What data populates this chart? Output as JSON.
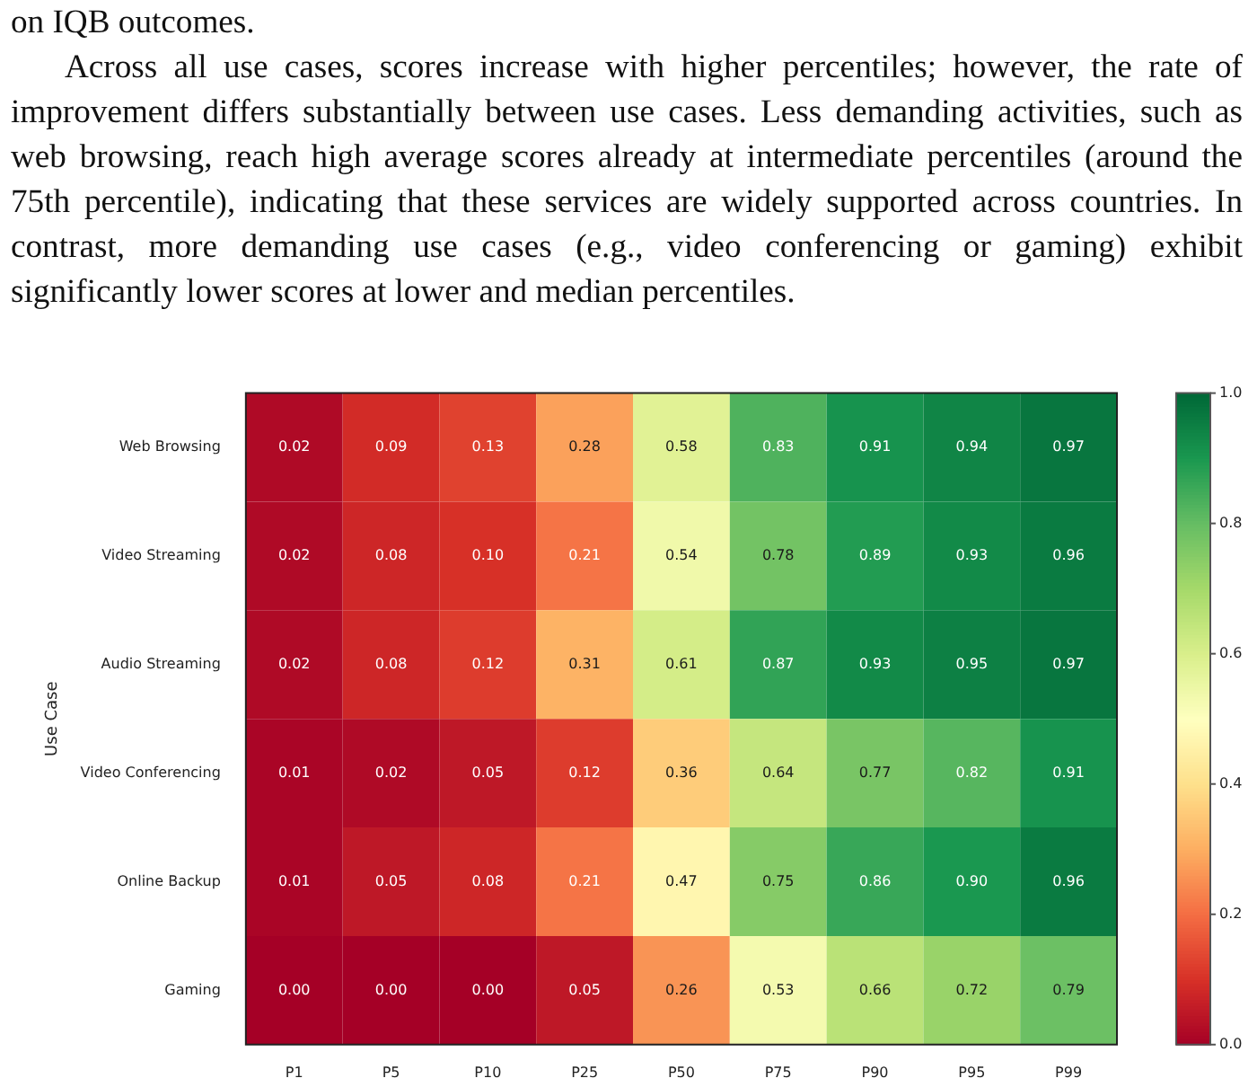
{
  "chart_data": {
    "type": "heatmap",
    "ylabel": "Use Case",
    "annotations": [
      "on IQB outcomes.",
      "Across all use cases, scores increase with higher percentiles; however, the rate of improvement differs substantially between use cases. Less demanding activities, such as web browsing, reach high average scores already at intermediate percentiles (around the 75th percentile), indicating that these services are widely supported across countries. In contrast, more demanding use cases (e.g., video conferencing or gaming) exhibit significantly lower scores at lower and median percentiles."
    ],
    "categories": [
      "P1",
      "P5",
      "P10",
      "P25",
      "P50",
      "P75",
      "P90",
      "P95",
      "P99"
    ],
    "y_categories": [
      "Web Browsing",
      "Video Streaming",
      "Audio Streaming",
      "Video Conferencing",
      "Online Backup",
      "Gaming"
    ],
    "cells": [
      [
        0.02,
        0.09,
        0.13,
        0.28,
        0.58,
        0.83,
        0.91,
        0.94,
        0.97
      ],
      [
        0.02,
        0.08,
        0.1,
        0.21,
        0.54,
        0.78,
        0.89,
        0.93,
        0.96
      ],
      [
        0.02,
        0.08,
        0.12,
        0.31,
        0.61,
        0.87,
        0.93,
        0.95,
        0.97
      ],
      [
        0.01,
        0.02,
        0.05,
        0.12,
        0.36,
        0.64,
        0.77,
        0.82,
        0.91
      ],
      [
        0.01,
        0.05,
        0.08,
        0.21,
        0.47,
        0.75,
        0.86,
        0.9,
        0.96
      ],
      [
        0.0,
        0.0,
        0.0,
        0.05,
        0.26,
        0.53,
        0.66,
        0.72,
        0.79
      ]
    ],
    "cell_labels": [
      [
        "0.02",
        "0.09",
        "0.13",
        "0.28",
        "0.58",
        "0.83",
        "0.91",
        "0.94",
        "0.97"
      ],
      [
        "0.02",
        "0.08",
        "0.10",
        "0.21",
        "0.54",
        "0.78",
        "0.89",
        "0.93",
        "0.96"
      ],
      [
        "0.02",
        "0.08",
        "0.12",
        "0.31",
        "0.61",
        "0.87",
        "0.93",
        "0.95",
        "0.97"
      ],
      [
        "0.01",
        "0.02",
        "0.05",
        "0.12",
        "0.36",
        "0.64",
        "0.77",
        "0.82",
        "0.91"
      ],
      [
        "0.01",
        "0.05",
        "0.08",
        "0.21",
        "0.47",
        "0.75",
        "0.86",
        "0.90",
        "0.96"
      ],
      [
        "0.00",
        "0.00",
        "0.00",
        "0.05",
        "0.26",
        "0.53",
        "0.66",
        "0.72",
        "0.79"
      ]
    ],
    "data_labels": true,
    "clim": [
      0,
      1
    ],
    "cticks": [
      {
        "value": 0,
        "label": "0.0"
      },
      {
        "value": 0.2,
        "label": "0.2"
      },
      {
        "value": 0.4,
        "label": "0.4"
      },
      {
        "value": 0.6,
        "label": "0.6"
      },
      {
        "value": 0.8,
        "label": "0.8"
      },
      {
        "value": 1,
        "label": "1.0"
      }
    ]
  }
}
